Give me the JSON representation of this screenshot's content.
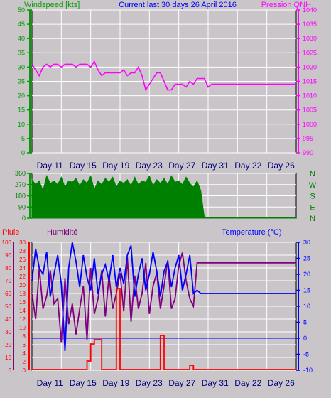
{
  "title": "Current last 30 days 26 April 2016",
  "colors": {
    "background": "#c9c5c9",
    "wind": "#00a000",
    "pressure": "#ff00ff",
    "direction": "#008000",
    "rain": "#ff0000",
    "humidity": "#800080",
    "temperature": "#0000ff",
    "grid": "#ffffff",
    "frame": "#000000"
  },
  "chart_data": [
    {
      "type": "line",
      "panel": "wind-pressure",
      "x_ticks": [
        "Day 11",
        "Day 15",
        "Day 19",
        "Day 23",
        "Day 27",
        "Day 31",
        "Day 22",
        "Day 26"
      ],
      "left_axis": {
        "label": "Windspeed [kts]",
        "ticks": [
          0,
          5,
          10,
          15,
          20,
          25,
          30,
          35,
          40,
          45,
          50
        ],
        "range": [
          0,
          50
        ]
      },
      "right_axis": {
        "label": "Pression QNH",
        "ticks": [
          990,
          995,
          1000,
          1005,
          1010,
          1015,
          1020,
          1025,
          1030,
          1035,
          1040
        ],
        "range": [
          990,
          1040
        ]
      },
      "grid": true,
      "series": [
        {
          "name": "Pression QNH",
          "axis": "right",
          "day_start": 11,
          "step": 0.5,
          "values": [
            1021,
            1019,
            1017,
            1020,
            1021,
            1020,
            1021,
            1021,
            1020,
            1021,
            1021,
            1021,
            1020,
            1021,
            1021,
            1021,
            1020,
            1022,
            1019,
            1017,
            1018,
            1018,
            1018,
            1018,
            1018,
            1019,
            1017,
            1018,
            1018,
            1020,
            1017,
            1012,
            1014,
            1016,
            1018,
            1018,
            1015,
            1012,
            1012,
            1014,
            1014,
            1014,
            1013,
            1015,
            1014,
            1016,
            1016,
            1016,
            1013,
            1014,
            1014,
            1014,
            1014,
            1014,
            1014,
            1014,
            1014,
            1014,
            1014,
            1014,
            1014,
            1014,
            1014,
            1014,
            1014,
            1014,
            1014,
            1014,
            1014,
            1014,
            1014,
            1014,
            1014
          ]
        }
      ]
    },
    {
      "type": "area",
      "panel": "wind-direction",
      "x_ticks": [
        "Day 11",
        "Day 15",
        "Day 19",
        "Day 23",
        "Day 27",
        "Day 31",
        "Day 22",
        "Day 26"
      ],
      "left_axis": {
        "ticks": [
          0,
          90,
          180,
          270,
          360
        ],
        "range": [
          0,
          360
        ]
      },
      "right_labels": [
        "N",
        "W",
        "S",
        "E",
        "N"
      ],
      "series": [
        {
          "name": "Direction",
          "day_start": 11,
          "step": 0.5,
          "values": [
            310,
            270,
            300,
            220,
            340,
            280,
            300,
            270,
            330,
            250,
            300,
            290,
            320,
            260,
            310,
            280,
            340,
            230,
            300,
            270,
            320,
            290,
            330,
            250,
            300,
            280,
            310,
            260,
            330,
            270,
            300,
            290,
            340,
            260,
            310,
            280,
            320,
            270,
            340,
            290,
            300,
            270,
            330,
            280,
            250,
            300,
            220,
            0,
            0,
            0,
            0,
            0,
            0,
            0,
            0,
            0,
            0,
            0,
            0,
            0,
            0,
            0,
            0,
            0,
            0,
            0,
            0,
            0,
            0,
            0,
            0,
            0,
            0
          ]
        }
      ]
    },
    {
      "type": "line",
      "panel": "rain-humidity-temperature",
      "x_ticks": [
        "Day 11",
        "Day 15",
        "Day 19",
        "Day 23",
        "Day 27",
        "Day 31",
        "Day 22",
        "Day 26"
      ],
      "labels": {
        "rain": "Pluie",
        "humidity": "Humidité",
        "temperature": "Temperature (°C)"
      },
      "humidity_axis": {
        "ticks": [
          0,
          10,
          20,
          30,
          40,
          50,
          60,
          70,
          80,
          90,
          100
        ],
        "range": [
          0,
          100
        ]
      },
      "rain_axis": {
        "ticks": [
          0,
          2,
          4,
          6,
          8,
          10,
          12,
          14,
          16,
          18,
          20,
          22,
          24,
          26,
          28,
          30
        ],
        "range": [
          0,
          30
        ]
      },
      "temperature_axis": {
        "ticks": [
          -10,
          -5,
          0,
          5,
          10,
          15,
          20,
          25,
          30
        ],
        "range": [
          -10,
          30
        ]
      },
      "series": [
        {
          "name": "Temperature",
          "axis": "temperature",
          "day_start": 11,
          "step": 0.5,
          "values": [
            18,
            28,
            22,
            20,
            27,
            13,
            20,
            26,
            17,
            -4,
            22,
            30,
            24,
            16,
            26,
            19,
            15,
            25,
            14,
            20,
            23,
            18,
            26,
            16,
            22,
            17,
            26,
            29,
            13,
            20,
            25,
            15,
            20,
            27,
            21,
            13,
            21,
            24,
            16,
            22,
            26,
            15,
            20,
            26,
            14,
            15,
            14,
            14,
            14,
            14,
            14,
            14,
            14,
            14,
            14,
            14,
            14,
            14,
            14,
            14,
            14,
            14,
            14,
            14,
            14,
            14,
            14,
            14,
            14,
            14,
            14,
            14,
            14
          ]
        },
        {
          "name": "Humidité",
          "axis": "humidity",
          "day_start": 11,
          "step": 0.5,
          "values": [
            60,
            40,
            80,
            48,
            58,
            78,
            52,
            56,
            22,
            72,
            36,
            52,
            28,
            48,
            66,
            24,
            80,
            44,
            56,
            78,
            42,
            74,
            48,
            60,
            76,
            46,
            88,
            38,
            74,
            48,
            60,
            84,
            44,
            66,
            76,
            48,
            66,
            86,
            48,
            56,
            82,
            92,
            70,
            56,
            50,
            84,
            84,
            84,
            84,
            84,
            84,
            84,
            84,
            84,
            84,
            84,
            84,
            84,
            84,
            84,
            84,
            84,
            84,
            84,
            84,
            84,
            84,
            84,
            84,
            84,
            84,
            84,
            84
          ]
        },
        {
          "name": "Pluie",
          "axis": "rain",
          "day_start": 11,
          "step": 0.5,
          "values": [
            0,
            0,
            0,
            0,
            0,
            0,
            0,
            0,
            0,
            0,
            0,
            0,
            0,
            0,
            0,
            2,
            6,
            7,
            7,
            0,
            0,
            0,
            0,
            19,
            0,
            0,
            0,
            0,
            0,
            0,
            0,
            0,
            0,
            0,
            0,
            8,
            0,
            0,
            0,
            0,
            0,
            0,
            0,
            1,
            0,
            0,
            0,
            0,
            0,
            0,
            0,
            0,
            0,
            0,
            0,
            0,
            0,
            0,
            0,
            0,
            0,
            0,
            0,
            0,
            0,
            0,
            0,
            0,
            0,
            0,
            0,
            0,
            0
          ]
        }
      ]
    }
  ]
}
